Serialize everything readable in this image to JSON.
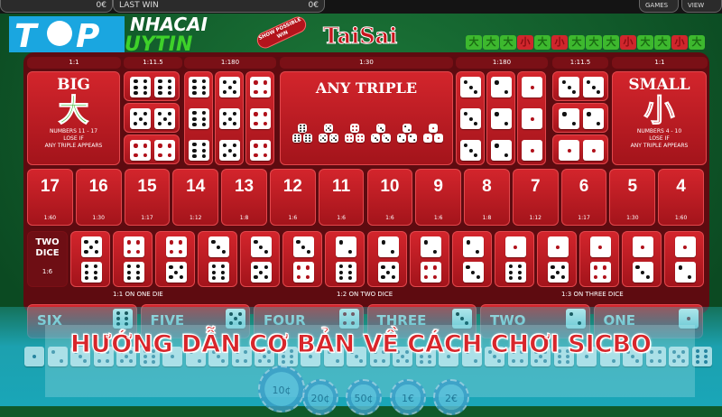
{
  "header": {
    "balance": "0€",
    "last_win_label": "LAST WIN",
    "last_win": "0€",
    "games_label": "GAMES",
    "view_label": "VIEW"
  },
  "logo": {
    "top": "TOP",
    "line1": "NHACAI",
    "line2": "UYTIN"
  },
  "game": {
    "title": "TaiSai",
    "show_possible_win": "SHOW POSSIBLE WIN"
  },
  "history": [
    "大",
    "大",
    "大",
    "小",
    "大",
    "小",
    "大",
    "大",
    "大",
    "小",
    "大",
    "大",
    "小",
    "大"
  ],
  "colors": {
    "big": "#3db82e",
    "small": "#d0262c",
    "table": "#c41c23",
    "banner": "#d8262b"
  },
  "top_odds": [
    "1:1",
    "1:11.5",
    "1:180",
    "1:30",
    "1:180",
    "1:11.5",
    "1:1"
  ],
  "big": {
    "title": "BIG",
    "glyph": "大",
    "desc1": "NUMBERS 11 - 17",
    "desc2": "LOSE IF",
    "desc3": "ANY TRIPLE APPEARS"
  },
  "small": {
    "title": "SMALL",
    "glyph": "小",
    "desc1": "NUMBERS 4 - 10",
    "desc2": "LOSE IF",
    "desc3": "ANY TRIPLE APPEARS"
  },
  "any_triple": {
    "title": "ANY TRIPLE"
  },
  "doubles_left": [
    6,
    5,
    4
  ],
  "triples_left": [
    6,
    5,
    4
  ],
  "triples_right": [
    3,
    2,
    1
  ],
  "doubles_right": [
    3,
    2,
    1
  ],
  "totals": [
    {
      "n": "17",
      "odds": "1:60"
    },
    {
      "n": "16",
      "odds": "1:30"
    },
    {
      "n": "15",
      "odds": "1:17"
    },
    {
      "n": "14",
      "odds": "1:12"
    },
    {
      "n": "13",
      "odds": "1:8"
    },
    {
      "n": "12",
      "odds": "1:6"
    },
    {
      "n": "11",
      "odds": "1:6"
    },
    {
      "n": "10",
      "odds": "1:6"
    },
    {
      "n": "9",
      "odds": "1:6"
    },
    {
      "n": "8",
      "odds": "1:8"
    },
    {
      "n": "7",
      "odds": "1:12"
    },
    {
      "n": "6",
      "odds": "1:17"
    },
    {
      "n": "5",
      "odds": "1:30"
    },
    {
      "n": "4",
      "odds": "1:60"
    }
  ],
  "two_dice": {
    "label1": "TWO",
    "label2": "DICE",
    "odds": "1:6",
    "pairs": [
      [
        5,
        6
      ],
      [
        4,
        6
      ],
      [
        4,
        5
      ],
      [
        3,
        6
      ],
      [
        3,
        5
      ],
      [
        3,
        4
      ],
      [
        2,
        6
      ],
      [
        2,
        5
      ],
      [
        2,
        4
      ],
      [
        2,
        3
      ],
      [
        1,
        6
      ],
      [
        1,
        5
      ],
      [
        1,
        4
      ],
      [
        1,
        3
      ],
      [
        1,
        2
      ]
    ]
  },
  "group_labels": [
    "1:1 ON ONE DIE",
    "1:2 ON TWO DICE",
    "1:3 ON THREE DICE"
  ],
  "singles": [
    {
      "label": "SIX",
      "v": 6
    },
    {
      "label": "FIVE",
      "v": 5
    },
    {
      "label": "FOUR",
      "v": 4
    },
    {
      "label": "THREE",
      "v": 3
    },
    {
      "label": "TWO",
      "v": 2
    },
    {
      "label": "ONE",
      "v": 1
    }
  ],
  "chips": [
    "10¢",
    "20¢",
    "50¢",
    "1€",
    "2€"
  ],
  "banner": "HƯỚNG DẪN CƠ BẢN VỀ CÁCH CHƠI SICBO"
}
